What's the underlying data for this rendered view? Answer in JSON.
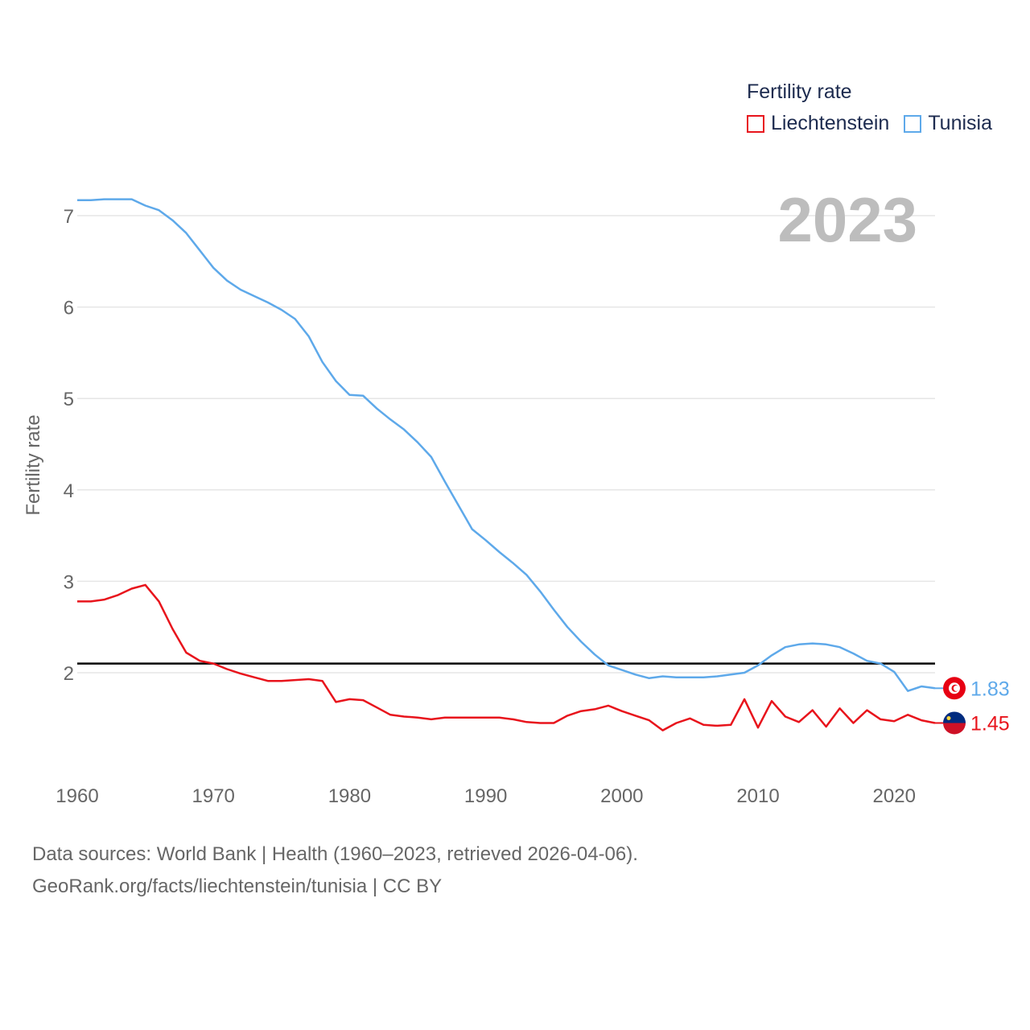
{
  "legend": {
    "title": "Fertility rate",
    "items": [
      {
        "label": "Liechtenstein",
        "color": "#e8141c"
      },
      {
        "label": "Tunisia",
        "color": "#5ea9ea"
      }
    ]
  },
  "year_label": "2023",
  "footer": {
    "line1": "Data sources: World Bank | Health (1960–2023, retrieved 2026-04-06).",
    "line2": "GeoRank.org/facts/liechtenstein/tunisia | CC BY"
  },
  "chart_data": {
    "type": "line",
    "title": "Fertility rate",
    "xlabel": "",
    "ylabel": "Fertility rate",
    "xlim": [
      1960,
      2023
    ],
    "ylim": [
      1.0,
      7.5
    ],
    "x_ticks": [
      1960,
      1970,
      1980,
      1990,
      2000,
      2010,
      2020
    ],
    "y_ticks": [
      2,
      3,
      4,
      5,
      6,
      7
    ],
    "grid": true,
    "legend_position": "top-right",
    "reference_line": {
      "y": 2.1,
      "color": "#000000"
    },
    "x": [
      1960,
      1961,
      1962,
      1963,
      1964,
      1965,
      1966,
      1967,
      1968,
      1969,
      1970,
      1971,
      1972,
      1973,
      1974,
      1975,
      1976,
      1977,
      1978,
      1979,
      1980,
      1981,
      1982,
      1983,
      1984,
      1985,
      1986,
      1987,
      1988,
      1989,
      1990,
      1991,
      1992,
      1993,
      1994,
      1995,
      1996,
      1997,
      1998,
      1999,
      2000,
      2001,
      2002,
      2003,
      2004,
      2005,
      2006,
      2007,
      2008,
      2009,
      2010,
      2011,
      2012,
      2013,
      2014,
      2015,
      2016,
      2017,
      2018,
      2019,
      2020,
      2021,
      2022,
      2023
    ],
    "series": [
      {
        "name": "Liechtenstein",
        "color": "#e8141c",
        "end_label": "1.45",
        "values": [
          2.78,
          2.78,
          2.8,
          2.85,
          2.92,
          2.96,
          2.78,
          2.48,
          2.22,
          2.13,
          2.1,
          2.04,
          1.99,
          1.95,
          1.91,
          1.91,
          1.92,
          1.93,
          1.91,
          1.68,
          1.71,
          1.7,
          1.62,
          1.54,
          1.52,
          1.51,
          1.49,
          1.51,
          1.51,
          1.51,
          1.51,
          1.51,
          1.49,
          1.46,
          1.45,
          1.45,
          1.53,
          1.58,
          1.6,
          1.64,
          1.58,
          1.53,
          1.48,
          1.37,
          1.45,
          1.5,
          1.43,
          1.42,
          1.43,
          1.71,
          1.4,
          1.69,
          1.52,
          1.46,
          1.59,
          1.41,
          1.61,
          1.45,
          1.59,
          1.49,
          1.47,
          1.54,
          1.48,
          1.45
        ]
      },
      {
        "name": "Tunisia",
        "color": "#5ea9ea",
        "end_label": "1.83",
        "values": [
          7.17,
          7.17,
          7.18,
          7.18,
          7.18,
          7.11,
          7.06,
          6.95,
          6.81,
          6.62,
          6.43,
          6.29,
          6.19,
          6.12,
          6.05,
          5.97,
          5.87,
          5.68,
          5.4,
          5.19,
          5.04,
          5.03,
          4.89,
          4.77,
          4.66,
          4.52,
          4.36,
          4.09,
          3.83,
          3.57,
          3.45,
          3.32,
          3.2,
          3.07,
          2.89,
          2.69,
          2.5,
          2.34,
          2.2,
          2.08,
          2.03,
          1.98,
          1.94,
          1.96,
          1.95,
          1.95,
          1.95,
          1.96,
          1.98,
          2.0,
          2.08,
          2.19,
          2.28,
          2.31,
          2.32,
          2.31,
          2.28,
          2.21,
          2.13,
          2.1,
          2.01,
          1.8,
          1.85,
          1.83
        ]
      }
    ]
  }
}
